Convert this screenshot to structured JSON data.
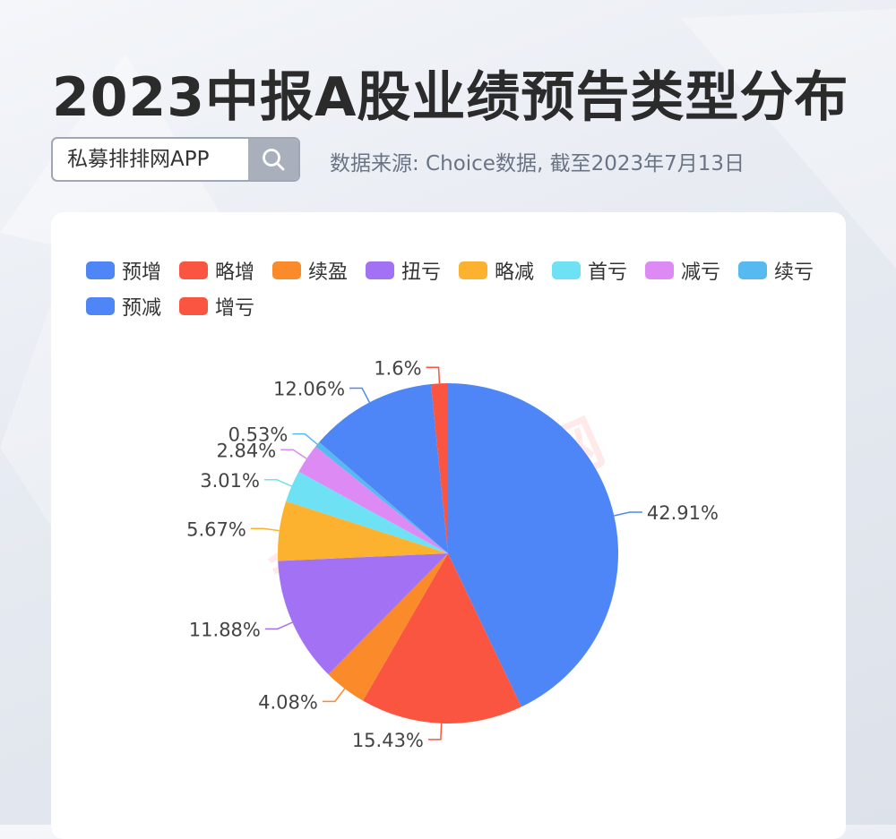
{
  "page": {
    "title": "2023中报A股业绩预告类型分布",
    "search_text": "私募排排网APP",
    "source": "数据来源: Choice数据, 截至2023年7月13日",
    "watermark": "私募排排网"
  },
  "icons": {
    "search": "search-icon"
  },
  "chart_data": {
    "type": "pie",
    "title": "",
    "categories": [
      "预增",
      "略增",
      "续盈",
      "扭亏",
      "略减",
      "首亏",
      "减亏",
      "续亏",
      "预减",
      "增亏"
    ],
    "values": [
      42.91,
      15.43,
      4.08,
      11.88,
      5.67,
      3.01,
      2.84,
      0.53,
      12.06,
      1.6
    ],
    "labels": [
      "42.91%",
      "15.43%",
      "4.08%",
      "11.88%",
      "5.67%",
      "3.01%",
      "2.84%",
      "0.53%",
      "12.06%",
      "1.6%"
    ],
    "colors": [
      "#4e86f7",
      "#fa5541",
      "#fa8a2a",
      "#a371f4",
      "#fdb22f",
      "#6fe1f5",
      "#dd8af5",
      "#56baf1",
      "#4e86f7",
      "#fa5541"
    ],
    "legend_position": "top",
    "label_unit": "%"
  }
}
